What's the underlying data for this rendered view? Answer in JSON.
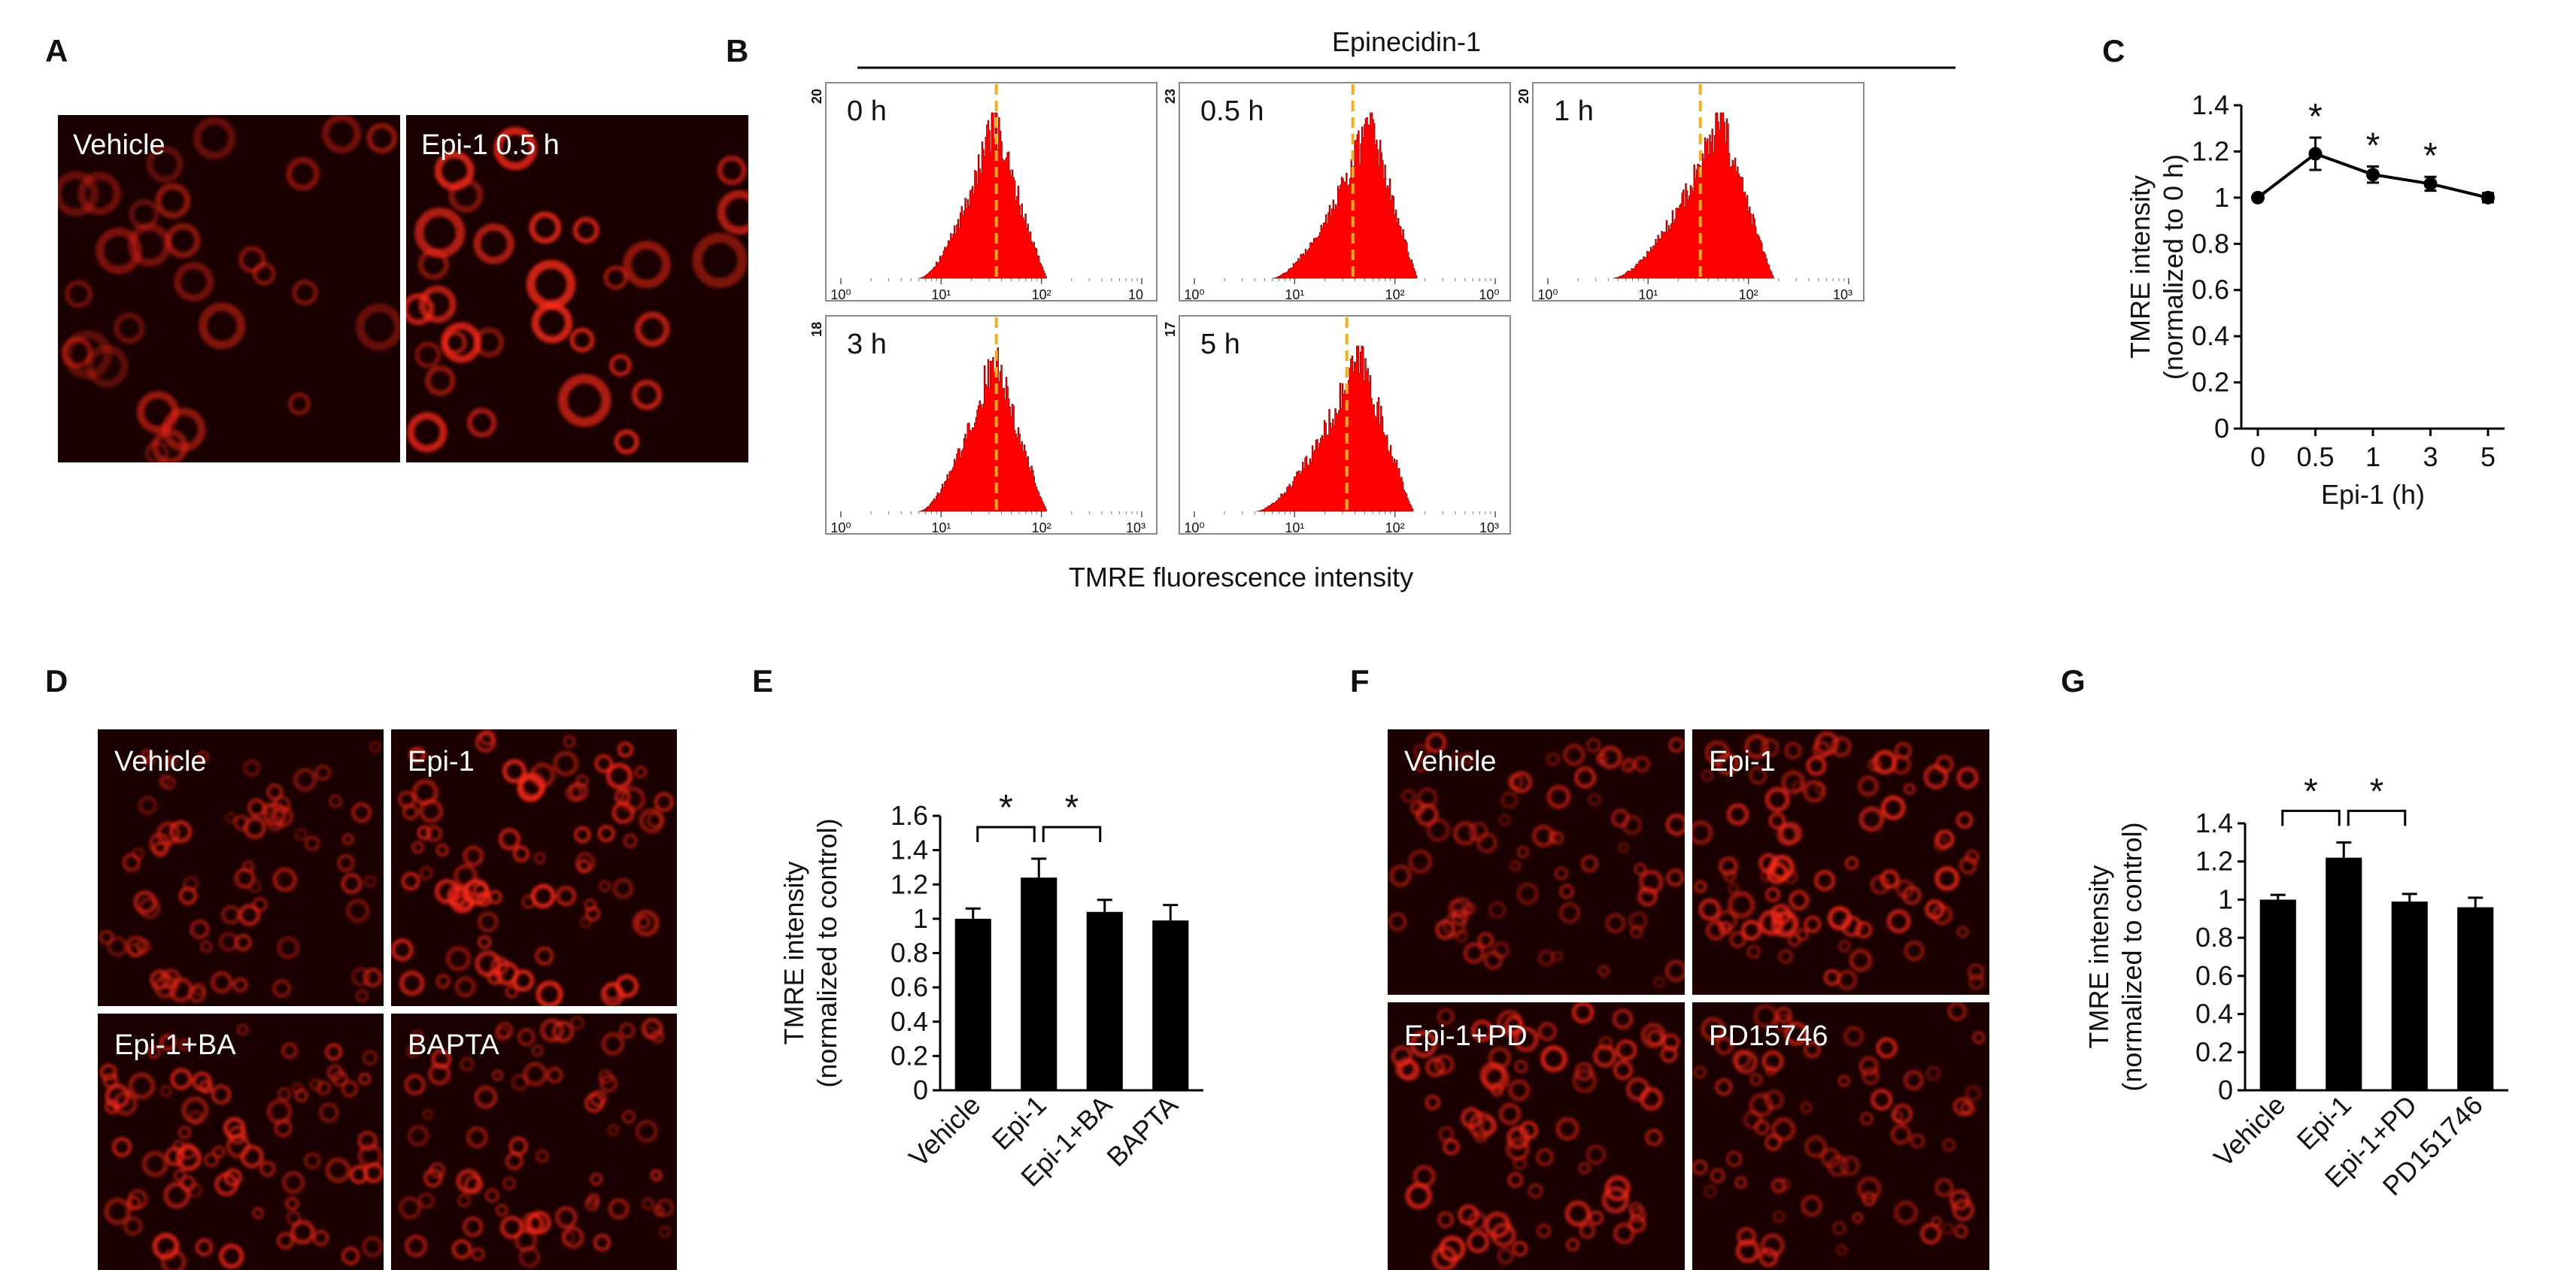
{
  "panel_labels": [
    "A",
    "B",
    "C",
    "D",
    "E",
    "F",
    "G"
  ],
  "panel_A": {
    "images": [
      "Vehicle",
      "Epi-1 0.5 h"
    ]
  },
  "panel_B": {
    "title": "Epinecidin-1",
    "xlabel": "TMRE fluorescence intensity",
    "tick_labels": [
      "10⁰",
      "10¹",
      "10²",
      "10³"
    ],
    "cut_tick_labels": [
      "10",
      "10⁰",
      "10³"
    ],
    "histograms": [
      {
        "label": "0 h",
        "ymax": "20",
        "color": "#ff0000",
        "marker_color": "#f0b020"
      },
      {
        "label": "0.5 h",
        "ymax": "23",
        "color": "#ff0000",
        "marker_color": "#f0b020"
      },
      {
        "label": "1 h",
        "ymax": "20",
        "color": "#ff0000",
        "marker_color": "#f0b020"
      },
      {
        "label": "3 h",
        "ymax": "18",
        "color": "#ff0000",
        "marker_color": "#f0b020"
      },
      {
        "label": "5 h",
        "ymax": "17",
        "color": "#ff0000",
        "marker_color": "#f0b020"
      }
    ]
  },
  "chart_data": [
    {
      "type": "line",
      "panel": "C",
      "xlabel": "Epi-1 (h)",
      "ylabel": "TMRE intensity",
      "ylabel2": "(normalized to 0 h)",
      "x": [
        0,
        0.5,
        1,
        3,
        5
      ],
      "x_tick_labels": [
        "0",
        "0.5",
        "1",
        "3",
        "5"
      ],
      "values": [
        1.0,
        1.19,
        1.1,
        1.06,
        1.0
      ],
      "errors": [
        0.0,
        0.07,
        0.035,
        0.03,
        0.02
      ],
      "significant": [
        false,
        true,
        true,
        true,
        false
      ],
      "significance_mark": "*",
      "ylim": [
        0,
        1.4
      ],
      "y_tick_labels": [
        "0",
        "0.2",
        "0.4",
        "0.6",
        "0.8",
        "1",
        "1.2",
        "1.4"
      ],
      "color": "#000000"
    },
    {
      "type": "bar",
      "panel": "E",
      "ylabel": "TMRE intensity",
      "ylabel2": "(normalized to control)",
      "categories": [
        "Vehicle",
        "Epi-1",
        "Epi-1+BA",
        "BAPTA"
      ],
      "values": [
        1.0,
        1.24,
        1.04,
        0.99
      ],
      "errors": [
        0.06,
        0.11,
        0.07,
        0.09
      ],
      "ylim": [
        0,
        1.6
      ],
      "y_tick_labels": [
        "0",
        "0.2",
        "0.4",
        "0.6",
        "0.8",
        "1",
        "1.2",
        "1.4",
        "1.6"
      ],
      "significance": [
        {
          "from": 0,
          "to": 1,
          "label": "*"
        },
        {
          "from": 1,
          "to": 2,
          "label": "*"
        }
      ],
      "color": "#000000"
    },
    {
      "type": "bar",
      "panel": "G",
      "ylabel": "TMRE intensity",
      "ylabel2": "(normalized to control)",
      "categories": [
        "Vehicle",
        "Epi-1",
        "Epi-1+PD",
        "PD151746"
      ],
      "values": [
        1.0,
        1.22,
        0.99,
        0.96
      ],
      "errors": [
        0.025,
        0.08,
        0.04,
        0.05
      ],
      "ylim": [
        0,
        1.4
      ],
      "y_tick_labels": [
        "0",
        "0.2",
        "0.4",
        "0.6",
        "0.8",
        "1",
        "1.2",
        "1.4"
      ],
      "significance": [
        {
          "from": 0,
          "to": 1,
          "label": "*"
        },
        {
          "from": 1,
          "to": 2,
          "label": "*"
        }
      ],
      "color": "#000000"
    }
  ],
  "panel_D": {
    "images": [
      "Vehicle",
      "Epi-1",
      "Epi-1+BA",
      "BAPTA"
    ]
  },
  "panel_F": {
    "images": [
      "Vehicle",
      "Epi-1",
      "Epi-1+PD",
      "PD15746"
    ]
  },
  "colors": {
    "micrograph_bg": "#1a0000",
    "cell": "#ff2a1a",
    "accent": "#ff0000"
  }
}
